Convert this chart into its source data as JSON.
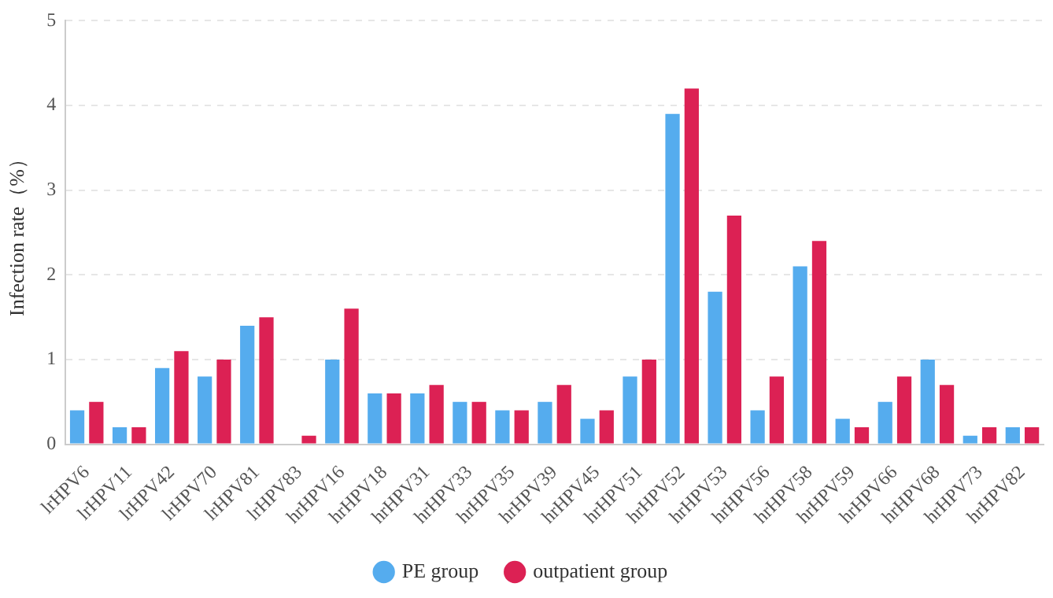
{
  "chart_data": {
    "type": "bar",
    "ylabel": "Infection rate（%）",
    "categories": [
      "lrHPV6",
      "lrHPV11",
      "lrHPV42",
      "lrHPV70",
      "lrHPV81",
      "lrHPV83",
      "hrHPV16",
      "hrHPV18",
      "hrHPV31",
      "hrHPV33",
      "hrHPV35",
      "hrHPV39",
      "hrHPV45",
      "hrHPV51",
      "hrHPV52",
      "hrHPV53",
      "hrHPV56",
      "hrHPV58",
      "hrHPV59",
      "hrHPV66",
      "hrHPV68",
      "hrHPV73",
      "hrHPV82"
    ],
    "series": [
      {
        "name": "PE group",
        "color": "#55acee",
        "values": [
          0.4,
          0.2,
          0.9,
          0.8,
          1.4,
          0,
          1.0,
          0.6,
          0.6,
          0.5,
          0.4,
          0.5,
          0.3,
          0.8,
          3.9,
          1.8,
          0.4,
          2.1,
          0.3,
          0.5,
          1.0,
          0.1,
          0.2
        ]
      },
      {
        "name": "outpatient group",
        "color": "#dc2154",
        "values": [
          0.5,
          0.2,
          1.1,
          1.0,
          1.5,
          0.1,
          1.6,
          0.6,
          0.7,
          0.5,
          0.4,
          0.7,
          0.4,
          1.0,
          4.2,
          2.7,
          0.8,
          2.4,
          0.2,
          0.8,
          0.7,
          0.2,
          0.2
        ]
      }
    ],
    "ylim": [
      0,
      5
    ],
    "yticks": [
      0,
      1,
      2,
      3,
      4,
      5
    ],
    "grid": "y",
    "legend": "bottom"
  }
}
